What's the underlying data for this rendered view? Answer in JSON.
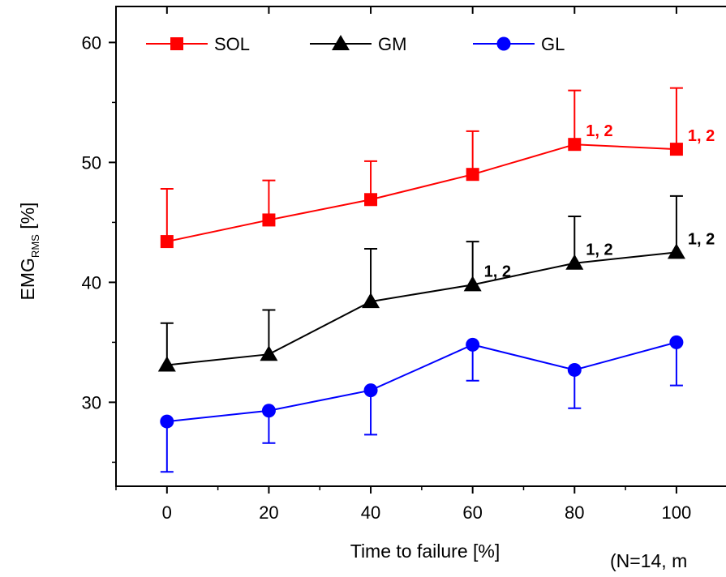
{
  "chart_data": {
    "type": "line",
    "xlabel": "Time to failure [%]",
    "ylabel_main": "EMG",
    "ylabel_sub": "RMS",
    "ylabel_unit": " [%]",
    "note": "(N=14, m",
    "x": [
      0,
      20,
      40,
      60,
      80,
      100
    ],
    "xticks": [
      "0",
      "20",
      "40",
      "60",
      "80",
      "100"
    ],
    "yticks": [
      "30",
      "40",
      "50",
      "60"
    ],
    "xlim": [
      -10,
      111
    ],
    "ylim": [
      23,
      63
    ],
    "legend_position": "top-left",
    "series": [
      {
        "name": "SOL",
        "color": "#ff0000",
        "marker": "square",
        "values": [
          43.4,
          45.2,
          46.9,
          49.0,
          51.5,
          51.1
        ],
        "error_upper": [
          47.8,
          48.5,
          50.1,
          52.6,
          56.0,
          56.2
        ],
        "error_direction": "up",
        "annotations": [
          {
            "x": 80,
            "text": "1, 2"
          },
          {
            "x": 100,
            "text": "1, 2"
          }
        ]
      },
      {
        "name": "GM",
        "color": "#000000",
        "marker": "triangle",
        "values": [
          33.1,
          34.0,
          38.4,
          39.8,
          41.6,
          42.5
        ],
        "error_upper": [
          36.6,
          37.7,
          42.8,
          43.4,
          45.5,
          47.2
        ],
        "error_direction": "up",
        "annotations": [
          {
            "x": 60,
            "text": "1, 2"
          },
          {
            "x": 80,
            "text": "1, 2"
          },
          {
            "x": 100,
            "text": "1, 2"
          }
        ]
      },
      {
        "name": "GL",
        "color": "#0000ff",
        "marker": "circle",
        "values": [
          28.4,
          29.3,
          31.0,
          34.8,
          32.7,
          35.0
        ],
        "error_lower": [
          24.2,
          26.6,
          27.3,
          31.8,
          29.5,
          31.4
        ],
        "error_direction": "down",
        "annotations": []
      }
    ]
  }
}
